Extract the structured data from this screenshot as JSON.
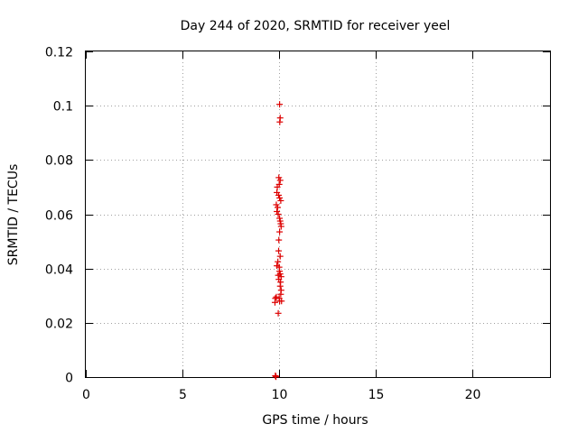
{
  "chart_data": {
    "type": "scatter",
    "title": "Day 244 of 2020, SRMTID for receiver yeel",
    "xlabel": "GPS time / hours",
    "ylabel": "SRMTID / TECUs",
    "xlim": [
      0,
      24
    ],
    "ylim": [
      0,
      0.12
    ],
    "xticks": [
      0,
      5,
      10,
      15,
      20
    ],
    "xtick_labels": [
      "0",
      "5",
      "10",
      "15",
      "20"
    ],
    "yticks": [
      0,
      0.02,
      0.04,
      0.06,
      0.08,
      0.1,
      0.12
    ],
    "ytick_labels": [
      "0",
      "0.02",
      "0.04",
      "0.06",
      "0.08",
      "0.1",
      "0.12"
    ],
    "grid": true,
    "series": [
      {
        "name": "SRMTID",
        "color": "#dd0000",
        "marker": "plus",
        "x": [
          10.02,
          10.05,
          10.03,
          9.98,
          10.05,
          10.0,
          9.9,
          9.88,
          9.97,
          10.02,
          10.08,
          9.85,
          9.92,
          9.88,
          9.95,
          10.02,
          10.05,
          10.08,
          10.1,
          10.02,
          9.98,
          9.97,
          10.05,
          9.93,
          9.88,
          10.0,
          10.02,
          10.05,
          10.1,
          9.95,
          9.98,
          10.07,
          10.05,
          10.1,
          10.08,
          9.85,
          10.0,
          10.12,
          9.8,
          9.78,
          10.02,
          9.95,
          9.8,
          9.82,
          9.83
        ],
        "y": [
          0.1005,
          0.0955,
          0.094,
          0.0735,
          0.0725,
          0.071,
          0.07,
          0.068,
          0.067,
          0.066,
          0.065,
          0.0635,
          0.0625,
          0.061,
          0.06,
          0.0585,
          0.0575,
          0.0565,
          0.0555,
          0.0535,
          0.0505,
          0.0465,
          0.0445,
          0.0425,
          0.041,
          0.0405,
          0.039,
          0.038,
          0.037,
          0.0375,
          0.036,
          0.035,
          0.0335,
          0.032,
          0.0305,
          0.0295,
          0.029,
          0.028,
          0.029,
          0.0275,
          0.028,
          0.0235,
          0.0005,
          0.0003,
          0.0001
        ]
      }
    ]
  }
}
